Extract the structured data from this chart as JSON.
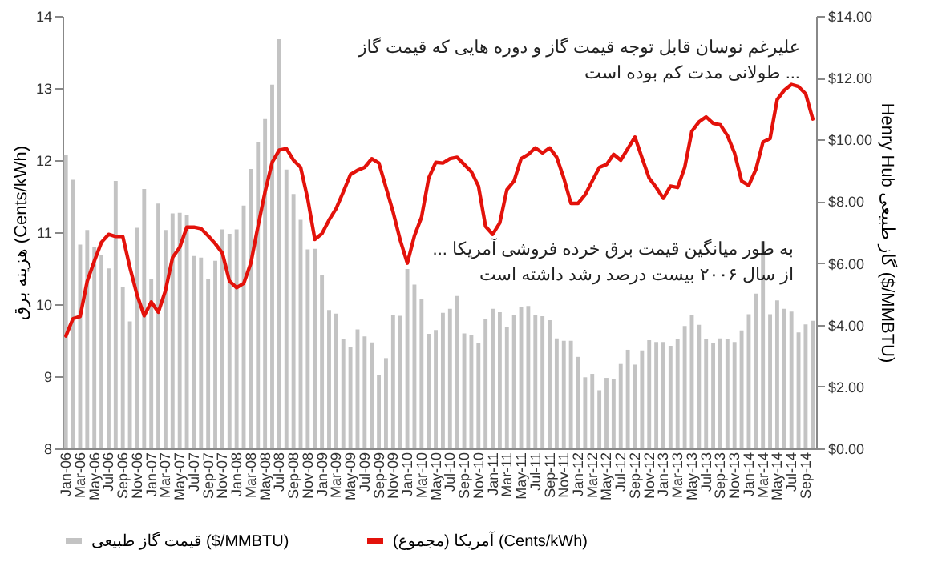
{
  "chart_data": {
    "type": "bar",
    "ylabel": "هزینه برق (Cents/kWh)",
    "y2label": "Henry Hub گاز طبیعی ($/MMBTU)",
    "annotations": [
      "علیرغم نوسان قابل توجه قیمت گاز و دوره هایی که قیمت گاز\nطولانی مدت کم بوده است ...",
      "... به طور میانگین قیمت برق خرده فروشی آمریکا\nاز سال ۲۰۰۶ بیست درصد رشد داشته است"
    ],
    "categories": [
      "Jan-06",
      null,
      "Mar-06",
      null,
      "May-06",
      null,
      "Jul-06",
      null,
      "Sep-06",
      null,
      "Nov-06",
      null,
      "Jan-07",
      null,
      "Mar-07",
      null,
      "May-07",
      null,
      "Jul-07",
      null,
      "Sep-07",
      null,
      "Nov-07",
      null,
      "Jan-08",
      null,
      "Mar-08",
      null,
      "May-08",
      null,
      "Jul-08",
      null,
      "Sep-08",
      null,
      "Nov-08",
      null,
      "Jan-09",
      null,
      "Mar-09",
      null,
      "May-09",
      null,
      "Jul-09",
      null,
      "Sep-09",
      null,
      "Nov-09",
      null,
      "Jan-10",
      null,
      "Mar-10",
      null,
      "May-10",
      null,
      "Jul-10",
      null,
      "Sep-10",
      null,
      "Nov-10",
      null,
      "Jan-11",
      null,
      "Mar-11",
      null,
      "May-11",
      null,
      "Jul-11",
      null,
      "Sep-11",
      null,
      "Nov-11",
      null,
      "Jan-12",
      null,
      "Mar-12",
      null,
      "May-12",
      null,
      "Jul-12",
      null,
      "Sep-12",
      null,
      "Nov-12",
      null,
      "Jan-13",
      null,
      "Mar-13",
      null,
      "May-13",
      null,
      "Jul-13",
      null,
      "Sep-13",
      null,
      "Nov-13",
      null,
      "Jan-14",
      null,
      "Mar-14",
      null,
      "May-14",
      null,
      "Jul-14",
      null,
      "Sep-14",
      null
    ],
    "series": [
      {
        "name": "قیمت گاز طبیعی ($/MMBTU)",
        "axis": "y2",
        "color": "#c3c3c3",
        "values": [
          9.5,
          8.7,
          6.6,
          7.07,
          6.53,
          6.25,
          5.83,
          8.66,
          5.23,
          4.11,
          7.14,
          8.4,
          5.48,
          7.93,
          7.07,
          7.61,
          7.63,
          7.56,
          6.23,
          6.18,
          5.48,
          6.07,
          7.09,
          6.95,
          7.09,
          7.86,
          9.05,
          9.92,
          10.66,
          11.78,
          13.25,
          9.03,
          8.24,
          7.4,
          6.44,
          6.46,
          5.62,
          4.48,
          4.36,
          3.55,
          3.29,
          3.85,
          3.62,
          3.43,
          2.36,
          2.92,
          4.32,
          4.29,
          5.81,
          5.3,
          4.83,
          3.71,
          3.83,
          4.39,
          4.52,
          4.93,
          3.72,
          3.66,
          3.41,
          4.19,
          4.52,
          4.41,
          3.93,
          4.31,
          4.58,
          4.61,
          4.33,
          4.28,
          4.15,
          3.56,
          3.48,
          3.48,
          2.96,
          2.3,
          2.41,
          1.88,
          2.28,
          2.24,
          2.73,
          3.19,
          2.71,
          3.17,
          3.5,
          3.44,
          3.44,
          3.32,
          3.53,
          3.96,
          4.31,
          4.0,
          3.53,
          3.42,
          3.56,
          3.54,
          3.44,
          3.82,
          4.34,
          5.01,
          6.71,
          4.34,
          4.79,
          4.52,
          4.43,
          3.75,
          4.01,
          4.13
        ]
      },
      {
        "name": "آمریکا (مجموع) (Cents/kWh)",
        "type": "line",
        "axis": "y",
        "color": "#e3120b",
        "values": [
          9.56,
          9.8,
          9.83,
          10.32,
          10.6,
          10.86,
          10.97,
          10.94,
          10.94,
          10.51,
          10.13,
          9.84,
          10.03,
          9.89,
          10.19,
          10.65,
          10.79,
          11.07,
          11.07,
          11.05,
          10.95,
          10.84,
          10.71,
          10.32,
          10.23,
          10.29,
          10.57,
          11.08,
          11.56,
          11.97,
          12.14,
          12.16,
          12.0,
          11.9,
          11.46,
          10.9,
          10.98,
          11.17,
          11.33,
          11.56,
          11.8,
          11.86,
          11.9,
          12.02,
          11.96,
          11.62,
          11.28,
          10.89,
          10.57,
          10.95,
          11.21,
          11.75,
          11.97,
          11.96,
          12.02,
          12.04,
          11.94,
          11.84,
          11.64,
          11.08,
          10.97,
          11.13,
          11.59,
          11.71,
          12.02,
          12.08,
          12.17,
          12.1,
          12.17,
          12.04,
          11.75,
          11.4,
          11.4,
          11.52,
          11.71,
          11.9,
          11.94,
          12.08,
          12.0,
          12.16,
          12.32,
          12.03,
          11.75,
          11.62,
          11.47,
          11.64,
          11.62,
          11.9,
          12.4,
          12.53,
          12.6,
          12.51,
          12.49,
          12.34,
          12.1,
          11.71,
          11.65,
          11.87,
          12.25,
          12.3,
          12.84,
          12.97,
          13.05,
          13.02,
          12.92,
          12.57
        ]
      }
    ],
    "ylim": [
      8,
      14
    ],
    "yticks": [
      8,
      9,
      10,
      11,
      12,
      13,
      14
    ],
    "y2lim": [
      0,
      14
    ],
    "y2ticks": [
      {
        "value": 0,
        "label": "$0.00"
      },
      {
        "value": 2,
        "label": "$2.00"
      },
      {
        "value": 4,
        "label": "$4.00"
      },
      {
        "value": 6,
        "label": "$6.00"
      },
      {
        "value": 8,
        "label": "$8.00"
      },
      {
        "value": 10,
        "label": "$10.00"
      },
      {
        "value": 12,
        "label": "$12.00"
      },
      {
        "value": 14,
        "label": "$14.00"
      }
    ],
    "grid": false,
    "legend": "bottom",
    "marker": "none",
    "line_style": "solid"
  }
}
